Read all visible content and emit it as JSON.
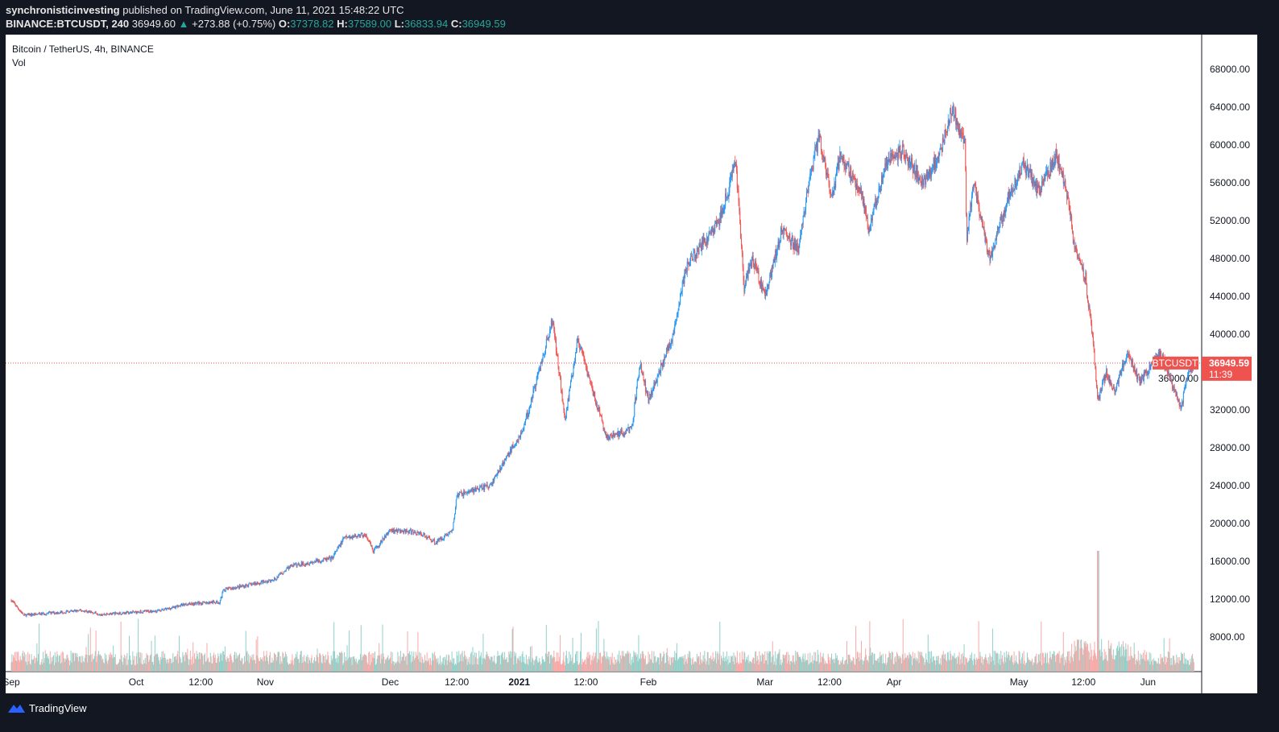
{
  "header": {
    "author": "synchronisticinvesting",
    "published": "published on TradingView.com, June 11, 2021 15:48:22 UTC",
    "symbol": "BINANCE:BTCUSDT, 240",
    "last": "36949.60",
    "change": "+273.88 (+0.75%)",
    "o_label": "O:",
    "o": "37378.82",
    "h_label": "H:",
    "h": "37589.00",
    "l_label": "L:",
    "l": "36833.94",
    "c_label": "C:",
    "c": "36949.59"
  },
  "legend": {
    "title": "Bitcoin / TetherUS, 4h, BINANCE",
    "vol": "Vol"
  },
  "footer": {
    "brand": "TradingView"
  },
  "colors": {
    "up": "#2196f3",
    "down": "#ef5350",
    "vol_up": "#8fd0c9",
    "vol_down": "#f7a9a7",
    "accent": "#ef5350"
  },
  "chart_data": {
    "type": "candlestick",
    "title": "Bitcoin / TetherUS, 4h, BINANCE",
    "ylim": [
      4000,
      72000
    ],
    "yticks": [
      "8000.00",
      "12000.00",
      "16000.00",
      "20000.00",
      "24000.00",
      "28000.00",
      "32000.00",
      "36000.00",
      "40000.00",
      "44000.00",
      "48000.00",
      "52000.00",
      "56000.00",
      "60000.00",
      "64000.00",
      "68000.00"
    ],
    "xticks": [
      {
        "label": "Sep",
        "day": 0
      },
      {
        "label": "Oct",
        "day": 30
      },
      {
        "label": "12:00",
        "day": 45.5
      },
      {
        "label": "Nov",
        "day": 61
      },
      {
        "label": "Dec",
        "day": 91
      },
      {
        "label": "12:00",
        "day": 107
      },
      {
        "label": "2021",
        "day": 122
      },
      {
        "label": "12:00",
        "day": 138
      },
      {
        "label": "Feb",
        "day": 153
      },
      {
        "label": "Mar",
        "day": 181
      },
      {
        "label": "12:00",
        "day": 196.5
      },
      {
        "label": "Apr",
        "day": 212
      },
      {
        "label": "May",
        "day": 242
      },
      {
        "label": "12:00",
        "day": 257.5
      },
      {
        "label": "Jun",
        "day": 273
      }
    ],
    "price_path_day_close": [
      [
        0,
        11900
      ],
      [
        3,
        10300
      ],
      [
        17,
        10800
      ],
      [
        22,
        10400
      ],
      [
        36,
        10800
      ],
      [
        42,
        11500
      ],
      [
        50,
        11700
      ],
      [
        51,
        13000
      ],
      [
        63,
        14000
      ],
      [
        67,
        15500
      ],
      [
        77,
        16300
      ],
      [
        80,
        18500
      ],
      [
        85,
        18800
      ],
      [
        87,
        17000
      ],
      [
        91,
        19300
      ],
      [
        98,
        19000
      ],
      [
        102,
        18000
      ],
      [
        106,
        19300
      ],
      [
        107,
        23000
      ],
      [
        115,
        24000
      ],
      [
        123,
        30000
      ],
      [
        130,
        41500
      ],
      [
        133,
        31000
      ],
      [
        136,
        39500
      ],
      [
        143,
        29000
      ],
      [
        149,
        30000
      ],
      [
        151,
        37000
      ],
      [
        153,
        33000
      ],
      [
        159,
        40000
      ],
      [
        162,
        47000
      ],
      [
        170,
        52000
      ],
      [
        174,
        58000
      ],
      [
        176,
        45000
      ],
      [
        178,
        48000
      ],
      [
        181,
        44000
      ],
      [
        185,
        51000
      ],
      [
        189,
        49000
      ],
      [
        192,
        57000
      ],
      [
        194,
        61000
      ],
      [
        197,
        54000
      ],
      [
        199,
        59000
      ],
      [
        204,
        55000
      ],
      [
        206,
        51000
      ],
      [
        210,
        58000
      ],
      [
        214,
        59500
      ],
      [
        219,
        56000
      ],
      [
        223,
        59000
      ],
      [
        226,
        64000
      ],
      [
        229,
        60000
      ],
      [
        229.5,
        50000
      ],
      [
        231,
        56000
      ],
      [
        235,
        48000
      ],
      [
        239,
        54000
      ],
      [
        243,
        58000
      ],
      [
        247,
        55000
      ],
      [
        251,
        59000
      ],
      [
        254,
        54000
      ],
      [
        255,
        50000
      ],
      [
        258,
        46000
      ],
      [
        260,
        38000
      ],
      [
        261,
        33000
      ],
      [
        263,
        36000
      ],
      [
        265,
        34000
      ],
      [
        268,
        38000
      ],
      [
        271,
        35000
      ],
      [
        276,
        38000
      ],
      [
        281,
        32000
      ],
      [
        282,
        35000
      ],
      [
        284,
        36950
      ]
    ],
    "last_price": {
      "symbol": "BTCUSDT",
      "value": "36949.59",
      "countdown": "11:39"
    }
  }
}
